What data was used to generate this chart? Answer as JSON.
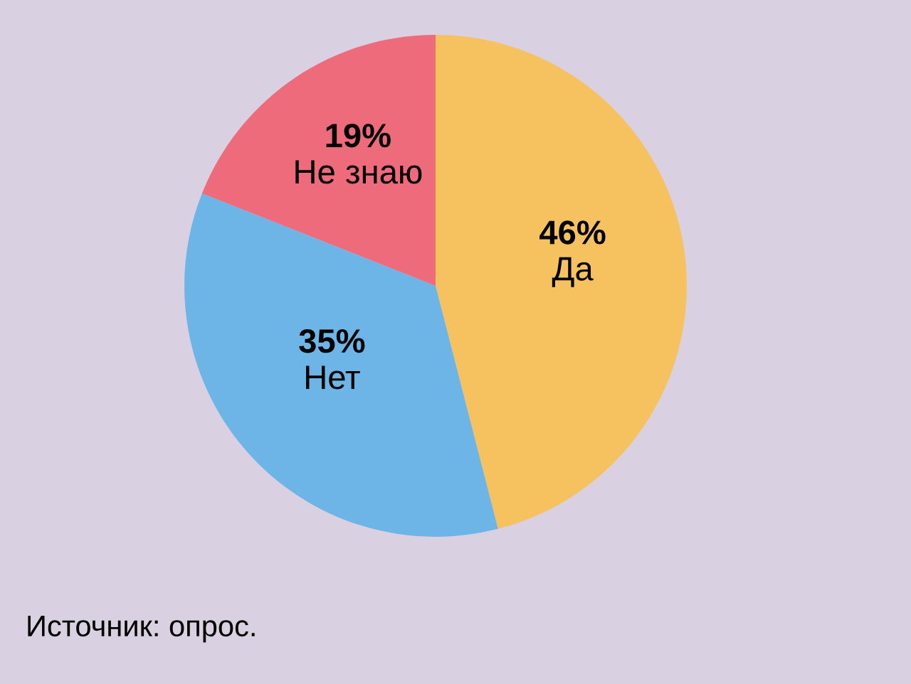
{
  "chart_data": {
    "type": "pie",
    "categories": [
      "Да",
      "Нет",
      "Не знаю"
    ],
    "values": [
      46,
      35,
      19
    ],
    "value_labels": [
      "46%",
      "35%",
      "19%"
    ],
    "colors": [
      "#f6c15f",
      "#6cb5e6",
      "#ee6b7c"
    ],
    "annotations": [
      "Источник: опрос."
    ]
  }
}
